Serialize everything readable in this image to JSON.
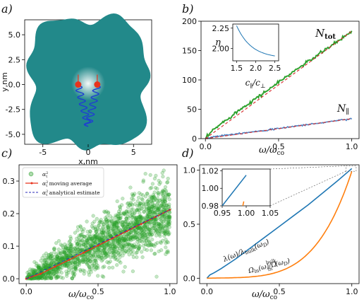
{
  "chart_data": [
    {
      "panel": "a)",
      "type": "diagram",
      "xlabel": "x,nm",
      "ylabel": "y,nm",
      "xlim": [
        -7,
        7
      ],
      "ylim": [
        -6,
        6.5
      ],
      "xticks": [
        "-5",
        "0",
        "5"
      ],
      "yticks": [
        "5.0",
        "2.5",
        "0.0",
        "-2.5",
        "-5.0"
      ],
      "colors": {
        "domain": "#22898a",
        "particle": "#e8331c",
        "spring": "#1f3fd1"
      }
    },
    {
      "panel": "b)",
      "type": "line",
      "xlabel": "ω/ω_co",
      "xlim": [
        0,
        1.05
      ],
      "ylim": [
        0,
        200
      ],
      "xticks": [
        "0.0",
        "0.5",
        "1.0"
      ],
      "yticks": [
        "0",
        "50",
        "100",
        "150",
        "200"
      ],
      "series": [
        {
          "name": "N_tot",
          "x": [
            0,
            0.05,
            0.1,
            0.2,
            0.3,
            0.4,
            0.5,
            0.6,
            0.7,
            0.8,
            0.9,
            1.0
          ],
          "y": [
            0,
            14,
            24,
            43,
            61,
            78,
            96,
            114,
            131,
            148,
            165,
            183
          ],
          "color": "#2ca02c"
        },
        {
          "name": "N_tot fit",
          "x": [
            0,
            1.0
          ],
          "y": [
            0,
            183
          ],
          "color": "#d62728"
        },
        {
          "name": "N_∥",
          "x": [
            0,
            0.05,
            0.1,
            0.2,
            0.3,
            0.4,
            0.5,
            0.6,
            0.7,
            0.8,
            0.9,
            1.0
          ],
          "y": [
            0,
            3,
            5,
            8,
            11,
            14,
            17,
            21,
            24,
            27,
            31,
            34
          ],
          "color": "#1f77b4"
        },
        {
          "name": "N_∥ fit",
          "x": [
            0,
            1.0
          ],
          "y": [
            0,
            34
          ],
          "color": "#d62728"
        }
      ],
      "inset": {
        "xlabel": "c_∥/c_⊥",
        "ylabel": "η",
        "xlim": [
          1.4,
          2.6
        ],
        "ylim": [
          1.85,
          2.3
        ],
        "xticks": [
          "1.5",
          "2.0",
          "2.5"
        ],
        "yticks": [
          "2.25",
          "2.00"
        ],
        "x": [
          1.5,
          1.6,
          1.7,
          1.8,
          1.9,
          2.0,
          2.1,
          2.2,
          2.3,
          2.4,
          2.5
        ],
        "y": [
          2.28,
          2.18,
          2.11,
          2.05,
          2.01,
          1.97,
          1.945,
          1.925,
          1.91,
          1.9,
          1.895
        ]
      }
    },
    {
      "panel": "c)",
      "type": "scatter",
      "xlabel": "ω/ω_co",
      "xlim": [
        -0.05,
        1.05
      ],
      "ylim": [
        -0.015,
        0.35
      ],
      "xticks": [
        "0.0",
        "0.5",
        "1.0"
      ],
      "yticks": [
        "0.0",
        "0.1",
        "0.2",
        "0.3"
      ],
      "legend": [
        "α_t^2",
        "α_t^2 moving average",
        "α_t^2 analytical estimate"
      ],
      "legend_position": "top-left",
      "moving_average": {
        "x": [
          0,
          0.1,
          0.2,
          0.3,
          0.4,
          0.5,
          0.6,
          0.7,
          0.8,
          0.9,
          1.0
        ],
        "y": [
          0,
          0.015,
          0.037,
          0.058,
          0.08,
          0.102,
          0.124,
          0.146,
          0.168,
          0.19,
          0.212
        ]
      },
      "analytical_estimate": {
        "x": [
          0,
          1.0
        ],
        "y": [
          0,
          0.212
        ]
      },
      "scatter_spread_sd_per_unit": 0.21,
      "colors": {
        "scatter": "#2ca02c",
        "moving_average": "#e8331c",
        "analytical": "#2a2ab8"
      }
    },
    {
      "panel": "d)",
      "type": "line",
      "xlabel": "ω/ω_co",
      "xlim": [
        -0.05,
        1.05
      ],
      "ylim": [
        -0.05,
        1.05
      ],
      "xticks": [
        "0.0",
        "0.5",
        "1.0"
      ],
      "yticks": [
        "0.0",
        "0.5",
        "1.0"
      ],
      "series": [
        {
          "name": "λ(ω)/λ_bulk(ω_D)",
          "x": [
            0,
            0.02,
            0.05,
            0.1,
            0.2,
            0.3,
            0.4,
            0.5,
            0.6,
            0.7,
            0.8,
            0.9,
            1.0
          ],
          "y": [
            0,
            0.03,
            0.05,
            0.09,
            0.18,
            0.28,
            0.38,
            0.48,
            0.58,
            0.68,
            0.79,
            0.9,
            1.015
          ],
          "color": "#1f77b4"
        },
        {
          "name": "Ω_ln(ω)/Ω_ln^bulk(ω_D)",
          "x": [
            0,
            0.1,
            0.2,
            0.3,
            0.4,
            0.5,
            0.6,
            0.7,
            0.8,
            0.9,
            1.0
          ],
          "y": [
            0,
            0.005,
            0.015,
            0.03,
            0.05,
            0.08,
            0.13,
            0.22,
            0.37,
            0.6,
            0.97
          ],
          "color": "#ff7f0e"
        }
      ],
      "inset": {
        "xlim": [
          0.95,
          1.05
        ],
        "ylim": [
          0.98,
          1.022
        ],
        "xticks": [
          "0.95",
          "1.00",
          "1.05"
        ],
        "yticks": [
          "1.02",
          "1.00",
          "0.98"
        ],
        "blue": {
          "x": [
            0.95,
            1.0
          ],
          "y": [
            0.98,
            1.015
          ]
        },
        "orange": {
          "x": [
            0.993,
            0.995
          ],
          "y": [
            0.98,
            0.985
          ]
        }
      }
    }
  ]
}
